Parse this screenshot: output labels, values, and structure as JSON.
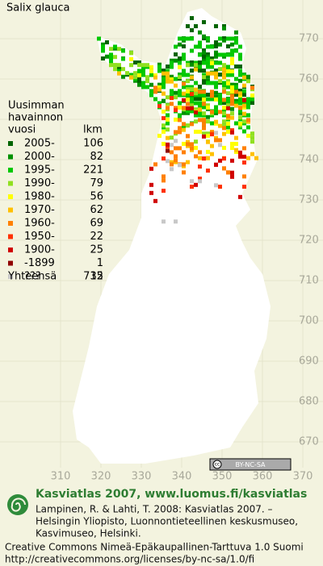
{
  "title": "Salix glauca",
  "legend": {
    "heading": [
      "Uusimman",
      "havainnon"
    ],
    "year_header": "vuosi",
    "count_header": "lkm",
    "rows": [
      {
        "label": "2005-",
        "count": 106,
        "color": "#006400"
      },
      {
        "label": "2000-",
        "count": 82,
        "color": "#009000"
      },
      {
        "label": "1995-",
        "count": 221,
        "color": "#00c800"
      },
      {
        "label": "1990-",
        "count": 79,
        "color": "#90e020"
      },
      {
        "label": "1980-",
        "count": 56,
        "color": "#ffff00"
      },
      {
        "label": "1970-",
        "count": 62,
        "color": "#ffc000"
      },
      {
        "label": "1960-",
        "count": 69,
        "color": "#ff8000"
      },
      {
        "label": "1950-",
        "count": 22,
        "color": "#ff3000"
      },
      {
        "label": "1900-",
        "count": 25,
        "color": "#d00000"
      },
      {
        "label": "-1899",
        "count": 1,
        "color": "#900000"
      },
      {
        "label": "???",
        "count": 12,
        "color": "#c8c8c8"
      }
    ],
    "total_label": "Yhteensä",
    "total": 735
  },
  "x_ticks": [
    310,
    320,
    330,
    340,
    350,
    360,
    370
  ],
  "y_ticks": [
    770,
    760,
    750,
    740,
    730,
    720,
    710,
    700,
    690,
    680,
    670
  ],
  "license_badge": "BY-NC-SA",
  "footer": {
    "heading": "Kasviatlas 2007, www.luomus.fi/kasviatlas",
    "citation": [
      "Lampinen, R. & Lahti, T. 2008: Kasviatlas 2007. –",
      "Helsingin Yliopisto, Luonnontieteellinen keskusmuseo,",
      "Kasvimuseo, Helsinki."
    ],
    "license": [
      "Creative Commons Nimeä-Epäkaupallinen-Tarttuva 1.0 Suomi",
      "http://creativecommons.org/licenses/by-nc-sa/1.0/fi"
    ]
  }
}
